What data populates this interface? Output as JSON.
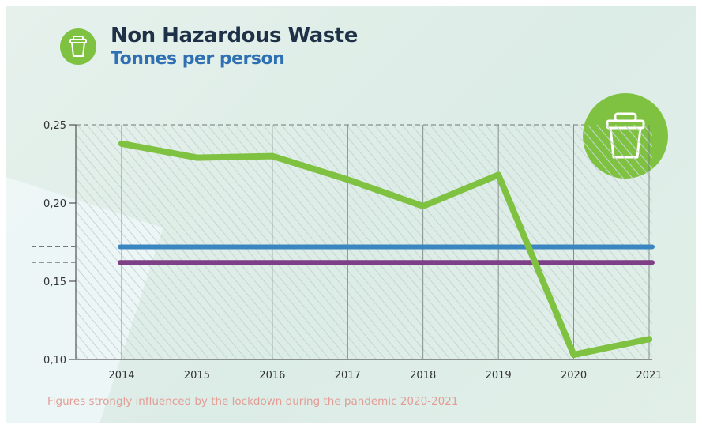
{
  "header": {
    "title": "Non Hazardous Waste",
    "subtitle": "Tonnes per person",
    "icon": "waste-bin-icon"
  },
  "badge": {
    "icon": "waste-bin-icon"
  },
  "note": "Figures strongly influenced by the lockdown during the pandemic 2020-2021",
  "colors": {
    "green": "#7fc241",
    "blue": "#3a86c0",
    "purple": "#7d3f85",
    "navy": "#1f3147",
    "note": "#e39d95"
  },
  "chart_data": {
    "type": "line",
    "title": "Non Hazardous Waste",
    "ylabel": "Tonnes per person",
    "categories": [
      "2014",
      "2015",
      "2016",
      "2017",
      "2018",
      "2019",
      "2020",
      "2021"
    ],
    "yticks": [
      "0,25",
      "0,20",
      "0,15",
      "0,10"
    ],
    "ytick_values": [
      0.25,
      0.2,
      0.15,
      0.1
    ],
    "ylim": [
      0.1,
      0.25
    ],
    "grid": "vertical",
    "series": [
      {
        "color": "#7fc241",
        "values": [
          0.238,
          0.229,
          0.23,
          0.215,
          0.198,
          0.218,
          0.103,
          0.113
        ]
      },
      {
        "color": "#3a86c0",
        "values": [
          0.172,
          0.172,
          0.172,
          0.172,
          0.172,
          0.172,
          0.172,
          0.172
        ]
      },
      {
        "color": "#7d3f85",
        "values": [
          0.162,
          0.162,
          0.162,
          0.162,
          0.162,
          0.162,
          0.162,
          0.162
        ]
      }
    ]
  }
}
